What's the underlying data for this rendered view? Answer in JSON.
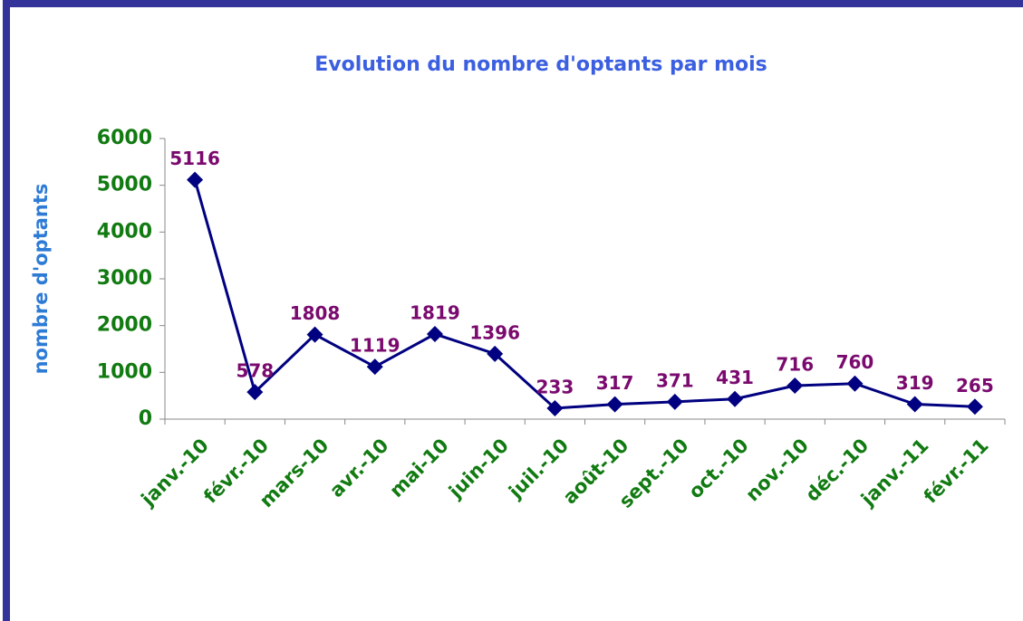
{
  "chart_data": {
    "type": "line",
    "title": "Evolution du nombre d'optants par mois",
    "y_label": "nombre d'optants",
    "categories": [
      "janv.-10",
      "févr.-10",
      "mars-10",
      "avr.-10",
      "mai-10",
      "juin-10",
      "juil.-10",
      "août-10",
      "sept.-10",
      "oct.-10",
      "nov.-10",
      "déc.-10",
      "janv.-11",
      "févr.-11"
    ],
    "series": [
      {
        "name": "nombre d'optants",
        "color": "#000080",
        "values": [
          5116,
          578,
          1808,
          1119,
          1819,
          1396,
          233,
          317,
          371,
          431,
          716,
          760,
          319,
          265
        ]
      }
    ],
    "ylim": [
      0,
      6000
    ],
    "yticks": [
      0,
      1000,
      2000,
      3000,
      4000,
      5000,
      6000
    ],
    "grid": false
  }
}
